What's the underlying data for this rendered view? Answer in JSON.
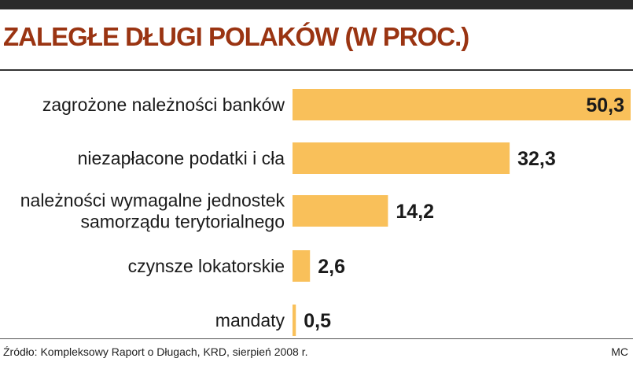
{
  "title": "ZALEGŁE DŁUGI POLAKÓW (W PROC.)",
  "source": "Źródło: Kompleksowy Raport o Długach, KRD, sierpień 2008 r.",
  "credit": "MC",
  "colors": {
    "bar": "#f9c05a",
    "title": "#9a3412",
    "text": "#1a1a1a"
  },
  "chart_data": {
    "type": "bar",
    "orientation": "horizontal",
    "title": "ZALEGŁE DŁUGI POLAKÓW (W PROC.)",
    "categories": [
      [
        "zagrożone należności banków"
      ],
      [
        "niezapłacone podatki i cła"
      ],
      [
        "należności wymagalne jednostek",
        "samorządu terytorialnego"
      ],
      [
        "czynsze lokatorskie"
      ],
      [
        "mandaty"
      ]
    ],
    "values": [
      50.3,
      32.3,
      14.2,
      2.6,
      0.5
    ],
    "value_labels": [
      "50,3",
      "32,3",
      "14,2",
      "2,6",
      "0,5"
    ],
    "xlabel": "",
    "ylabel": "",
    "xlim": [
      0,
      50.3
    ],
    "grid": false,
    "legend": "none"
  }
}
